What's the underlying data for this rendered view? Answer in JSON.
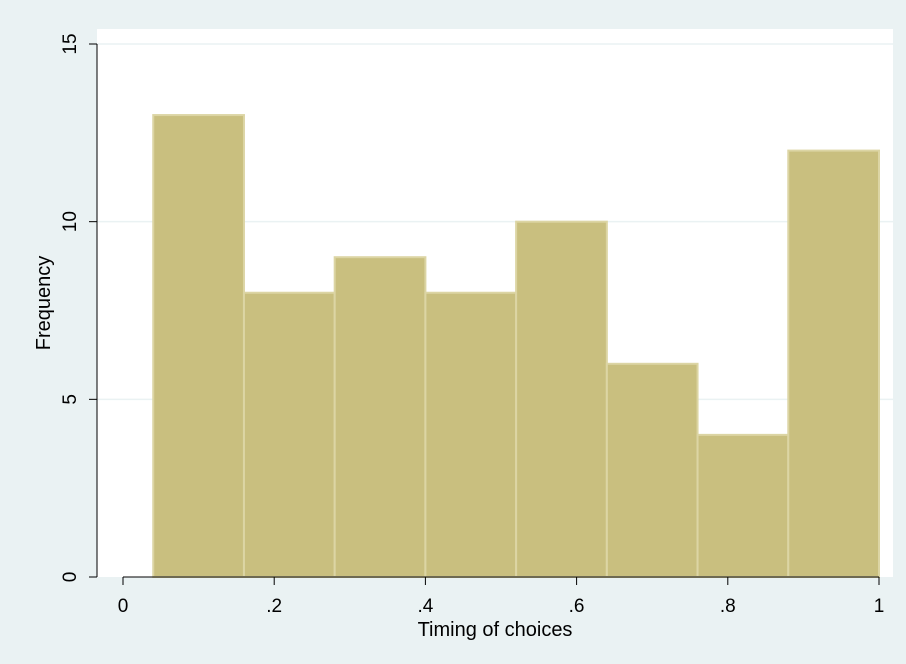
{
  "chart_data": {
    "type": "bar",
    "subtype": "histogram",
    "xlabel": "Timing of choices",
    "ylabel": "Frequency",
    "xlim": [
      0,
      1
    ],
    "ylim": [
      0,
      15
    ],
    "x_ticks": [
      0,
      0.2,
      0.4,
      0.6,
      0.8,
      1
    ],
    "x_tick_labels": [
      "0",
      ".2",
      ".4",
      ".6",
      ".8",
      "1"
    ],
    "y_ticks": [
      0,
      5,
      10,
      15
    ],
    "y_tick_labels": [
      "0",
      "5",
      "10",
      "15"
    ],
    "bin_edges": [
      0.04,
      0.16,
      0.28,
      0.4,
      0.52,
      0.64,
      0.76,
      0.88,
      1.0
    ],
    "values": [
      13,
      8,
      9,
      8,
      10,
      6,
      4,
      12
    ],
    "grid": true,
    "colors": {
      "outer_background": "#eaf2f3",
      "plot_background": "#ffffff",
      "bar_fill": "#c9bf7f",
      "bar_edge": "#dcd5a4",
      "gridline": "#eaf2f3",
      "axis": "#000000"
    }
  }
}
